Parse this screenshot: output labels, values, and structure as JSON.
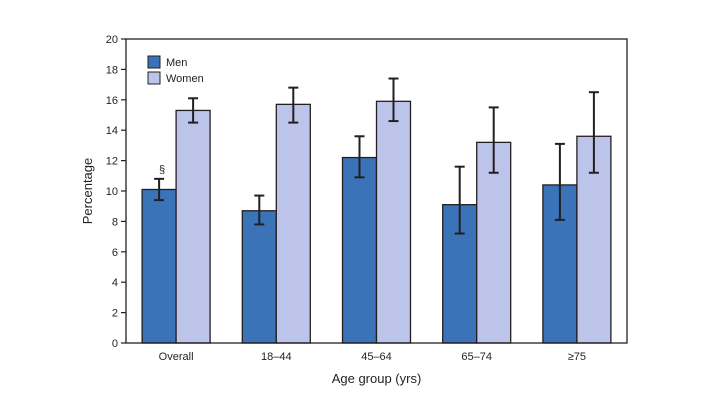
{
  "chart_data": {
    "type": "bar",
    "xlabel": "Age group (yrs)",
    "ylabel": "Percentage",
    "ylim": [
      0,
      20
    ],
    "yticks": [
      0,
      2,
      4,
      6,
      8,
      10,
      12,
      14,
      16,
      18,
      20
    ],
    "grid": false,
    "legend_position": "top-left",
    "categories": [
      "Overall",
      "18–44",
      "45–64",
      "65–74",
      "≥75"
    ],
    "series": [
      {
        "name": "Men",
        "color": "#3b73b9",
        "values": [
          10.1,
          8.7,
          12.2,
          9.1,
          10.4
        ],
        "ci_lower": [
          9.4,
          7.8,
          10.9,
          7.2,
          8.1
        ],
        "ci_upper": [
          10.8,
          9.7,
          13.6,
          11.6,
          13.1
        ]
      },
      {
        "name": "Women",
        "color": "#bcc4ea",
        "values": [
          15.3,
          15.7,
          15.9,
          13.2,
          13.6
        ],
        "ci_lower": [
          14.5,
          14.5,
          14.6,
          11.2,
          11.2
        ],
        "ci_upper": [
          16.1,
          16.8,
          17.4,
          15.5,
          16.5
        ]
      }
    ],
    "annotations": [
      {
        "text": "§",
        "category": "Overall",
        "series": "Men"
      }
    ]
  }
}
